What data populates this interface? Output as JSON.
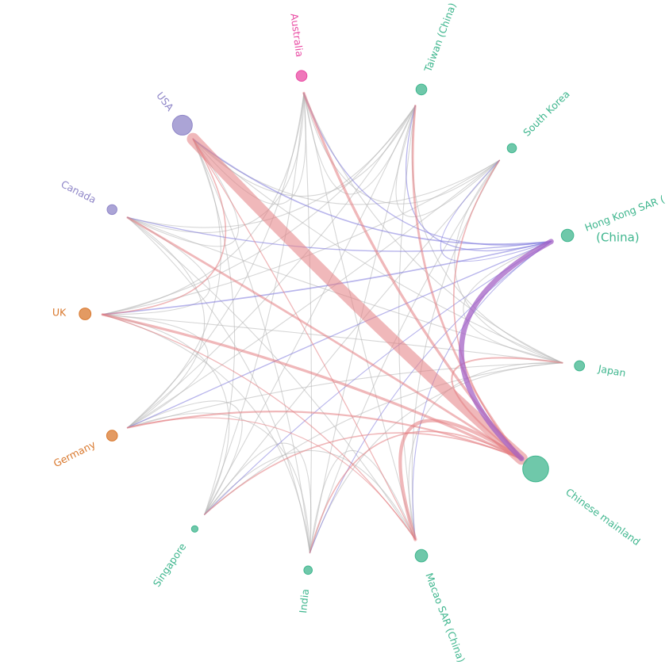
{
  "colors": {
    "east_asia": "#3fb68e",
    "north_america": "#8f86c8",
    "oceania": "#e94aa3",
    "europe": "#d9782d",
    "link_grey": "#b5b5b5",
    "link_red": "#e47d82",
    "link_blue": "#7e79dc",
    "link_purple": "#a463c6"
  },
  "nodes": [
    {
      "id": "usa",
      "label": "USA",
      "group": "north_america",
      "weight": 5
    },
    {
      "id": "australia",
      "label": "Australia",
      "group": "oceania",
      "weight": 2
    },
    {
      "id": "taiwan",
      "label": "Taiwan (China)",
      "group": "east_asia",
      "weight": 2
    },
    {
      "id": "south_korea",
      "label": "South Korea",
      "group": "east_asia",
      "weight": 1.5
    },
    {
      "id": "hong_kong",
      "label": "Hong Kong SAR (",
      "label_sub": "(China)",
      "group": "east_asia",
      "weight": 2.5
    },
    {
      "id": "japan",
      "label": "Japan",
      "group": "east_asia",
      "weight": 1.8
    },
    {
      "id": "chinese_mainland",
      "label": "Chinese mainland",
      "group": "east_asia",
      "weight": 7
    },
    {
      "id": "macao",
      "label": "Macao SAR (China)",
      "group": "east_asia",
      "weight": 2.5
    },
    {
      "id": "india",
      "label": "India",
      "group": "east_asia",
      "weight": 1.2
    },
    {
      "id": "singapore",
      "label": "Singapore",
      "group": "east_asia",
      "weight": 0.6
    },
    {
      "id": "germany",
      "label": "Germany",
      "group": "europe",
      "weight": 2
    },
    {
      "id": "uk",
      "label": "UK",
      "group": "europe",
      "weight": 2.3
    },
    {
      "id": "canada",
      "label": "Canada",
      "group": "north_america",
      "weight": 1.7
    }
  ],
  "links": [
    {
      "source": "usa",
      "target": "chinese_mainland",
      "weight": 14,
      "kind": "red"
    },
    {
      "source": "hong_kong",
      "target": "chinese_mainland",
      "weight": 6,
      "kind": "purple"
    },
    {
      "source": "macao",
      "target": "chinese_mainland",
      "weight": 4,
      "kind": "red"
    },
    {
      "source": "uk",
      "target": "chinese_mainland",
      "weight": 3,
      "kind": "red"
    },
    {
      "source": "australia",
      "target": "chinese_mainland",
      "weight": 3,
      "kind": "red"
    },
    {
      "source": "taiwan",
      "target": "chinese_mainland",
      "weight": 2.5,
      "kind": "red"
    },
    {
      "source": "canada",
      "target": "chinese_mainland",
      "weight": 2.5,
      "kind": "red"
    },
    {
      "source": "germany",
      "target": "chinese_mainland",
      "weight": 2,
      "kind": "red"
    },
    {
      "source": "japan",
      "target": "chinese_mainland",
      "weight": 2,
      "kind": "red"
    },
    {
      "source": "singapore",
      "target": "chinese_mainland",
      "weight": 1.5,
      "kind": "red"
    },
    {
      "source": "india",
      "target": "chinese_mainland",
      "weight": 1.5,
      "kind": "red"
    },
    {
      "source": "south_korea",
      "target": "chinese_mainland",
      "weight": 1.5,
      "kind": "red"
    },
    {
      "source": "usa",
      "target": "hong_kong",
      "weight": 1.5,
      "kind": "blue"
    },
    {
      "source": "uk",
      "target": "hong_kong",
      "weight": 1.5,
      "kind": "blue"
    },
    {
      "source": "canada",
      "target": "hong_kong",
      "weight": 1.2,
      "kind": "blue"
    },
    {
      "source": "australia",
      "target": "hong_kong",
      "weight": 1.2,
      "kind": "blue"
    },
    {
      "source": "taiwan",
      "target": "hong_kong",
      "weight": 1.2,
      "kind": "blue"
    },
    {
      "source": "germany",
      "target": "hong_kong",
      "weight": 1.2,
      "kind": "blue"
    },
    {
      "source": "singapore",
      "target": "hong_kong",
      "weight": 1,
      "kind": "blue"
    },
    {
      "source": "india",
      "target": "hong_kong",
      "weight": 1,
      "kind": "blue"
    },
    {
      "source": "macao",
      "target": "hong_kong",
      "weight": 1,
      "kind": "blue"
    },
    {
      "source": "south_korea",
      "target": "hong_kong",
      "weight": 1,
      "kind": "blue"
    },
    {
      "source": "usa",
      "target": "uk",
      "weight": 1.5,
      "kind": "red"
    },
    {
      "source": "usa",
      "target": "macao",
      "weight": 1.2,
      "kind": "red"
    },
    {
      "source": "uk",
      "target": "macao",
      "weight": 1.2,
      "kind": "red"
    },
    {
      "source": "germany",
      "target": "macao",
      "weight": 1,
      "kind": "red"
    },
    {
      "source": "usa",
      "target": "canada",
      "weight": 1,
      "kind": "grey"
    },
    {
      "source": "usa",
      "target": "australia",
      "weight": 1,
      "kind": "grey"
    },
    {
      "source": "usa",
      "target": "taiwan",
      "weight": 1,
      "kind": "grey"
    },
    {
      "source": "usa",
      "target": "south_korea",
      "weight": 1,
      "kind": "grey"
    },
    {
      "source": "usa",
      "target": "japan",
      "weight": 1,
      "kind": "grey"
    },
    {
      "source": "usa",
      "target": "germany",
      "weight": 1,
      "kind": "grey"
    },
    {
      "source": "usa",
      "target": "singapore",
      "weight": 1,
      "kind": "grey"
    },
    {
      "source": "usa",
      "target": "india",
      "weight": 1,
      "kind": "grey"
    },
    {
      "source": "canada",
      "target": "uk",
      "weight": 1,
      "kind": "grey"
    },
    {
      "source": "canada",
      "target": "germany",
      "weight": 1,
      "kind": "grey"
    },
    {
      "source": "canada",
      "target": "australia",
      "weight": 1,
      "kind": "grey"
    },
    {
      "source": "canada",
      "target": "taiwan",
      "weight": 1,
      "kind": "grey"
    },
    {
      "source": "canada",
      "target": "japan",
      "weight": 1,
      "kind": "grey"
    },
    {
      "source": "canada",
      "target": "macao",
      "weight": 1,
      "kind": "grey"
    },
    {
      "source": "canada",
      "target": "india",
      "weight": 1,
      "kind": "grey"
    },
    {
      "source": "uk",
      "target": "germany",
      "weight": 1,
      "kind": "grey"
    },
    {
      "source": "uk",
      "target": "australia",
      "weight": 1,
      "kind": "grey"
    },
    {
      "source": "uk",
      "target": "taiwan",
      "weight": 1,
      "kind": "grey"
    },
    {
      "source": "uk",
      "target": "japan",
      "weight": 1,
      "kind": "grey"
    },
    {
      "source": "uk",
      "target": "singapore",
      "weight": 1,
      "kind": "grey"
    },
    {
      "source": "uk",
      "target": "india",
      "weight": 1,
      "kind": "grey"
    },
    {
      "source": "uk",
      "target": "south_korea",
      "weight": 1,
      "kind": "grey"
    },
    {
      "source": "germany",
      "target": "singapore",
      "weight": 1,
      "kind": "grey"
    },
    {
      "source": "germany",
      "target": "taiwan",
      "weight": 1,
      "kind": "grey"
    },
    {
      "source": "germany",
      "target": "japan",
      "weight": 1,
      "kind": "grey"
    },
    {
      "source": "germany",
      "target": "australia",
      "weight": 1,
      "kind": "grey"
    },
    {
      "source": "germany",
      "target": "south_korea",
      "weight": 1,
      "kind": "grey"
    },
    {
      "source": "germany",
      "target": "india",
      "weight": 1,
      "kind": "grey"
    },
    {
      "source": "singapore",
      "target": "india",
      "weight": 1,
      "kind": "grey"
    },
    {
      "source": "singapore",
      "target": "taiwan",
      "weight": 1,
      "kind": "grey"
    },
    {
      "source": "singapore",
      "target": "japan",
      "weight": 1,
      "kind": "grey"
    },
    {
      "source": "singapore",
      "target": "australia",
      "weight": 1,
      "kind": "grey"
    },
    {
      "source": "singapore",
      "target": "south_korea",
      "weight": 1,
      "kind": "grey"
    },
    {
      "source": "singapore",
      "target": "macao",
      "weight": 1,
      "kind": "grey"
    },
    {
      "source": "india",
      "target": "macao",
      "weight": 1,
      "kind": "grey"
    },
    {
      "source": "india",
      "target": "taiwan",
      "weight": 1,
      "kind": "grey"
    },
    {
      "source": "india",
      "target": "japan",
      "weight": 1,
      "kind": "grey"
    },
    {
      "source": "india",
      "target": "south_korea",
      "weight": 1,
      "kind": "grey"
    },
    {
      "source": "india",
      "target": "australia",
      "weight": 1,
      "kind": "grey"
    },
    {
      "source": "macao",
      "target": "taiwan",
      "weight": 1,
      "kind": "grey"
    },
    {
      "source": "macao",
      "target": "japan",
      "weight": 1,
      "kind": "grey"
    },
    {
      "source": "macao",
      "target": "australia",
      "weight": 1,
      "kind": "grey"
    },
    {
      "source": "macao",
      "target": "south_korea",
      "weight": 1,
      "kind": "grey"
    },
    {
      "source": "japan",
      "target": "taiwan",
      "weight": 1,
      "kind": "grey"
    },
    {
      "source": "japan",
      "target": "south_korea",
      "weight": 1,
      "kind": "grey"
    },
    {
      "source": "japan",
      "target": "australia",
      "weight": 1,
      "kind": "grey"
    },
    {
      "source": "japan",
      "target": "hong_kong",
      "weight": 1,
      "kind": "grey"
    },
    {
      "source": "south_korea",
      "target": "taiwan",
      "weight": 1,
      "kind": "grey"
    },
    {
      "source": "south_korea",
      "target": "australia",
      "weight": 1,
      "kind": "grey"
    },
    {
      "source": "australia",
      "target": "taiwan",
      "weight": 1,
      "kind": "grey"
    }
  ]
}
